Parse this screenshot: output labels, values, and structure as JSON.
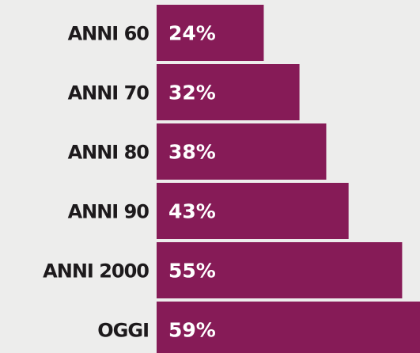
{
  "chart_data": {
    "type": "bar",
    "orientation": "horizontal",
    "categories": [
      "ANNI 60",
      "ANNI 70",
      "ANNI 80",
      "ANNI 90",
      "ANNI 2000",
      "OGGI"
    ],
    "values": [
      24,
      32,
      38,
      43,
      55,
      59
    ],
    "value_labels": [
      "24%",
      "32%",
      "38%",
      "43%",
      "55%",
      "59%"
    ],
    "color": "#861b57"
  }
}
